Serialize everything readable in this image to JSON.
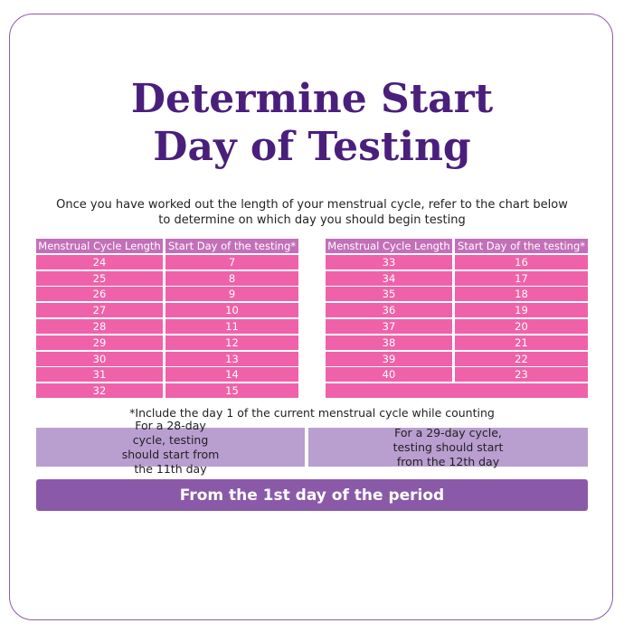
{
  "header": {
    "title_lines": [
      "Determine Start",
      "Day of Testing"
    ],
    "intro": "Once you have worked out the length of your menstrual cycle, refer to the chart below to determine on which day you should begin testing"
  },
  "tables": [
    {
      "headers": [
        "Menstrual Cycle Length",
        "Start Day of the testing*"
      ],
      "rows": [
        [
          24,
          7
        ],
        [
          25,
          8
        ],
        [
          26,
          9
        ],
        [
          27,
          10
        ],
        [
          28,
          11
        ],
        [
          29,
          12
        ],
        [
          30,
          13
        ],
        [
          31,
          14
        ],
        [
          32,
          15
        ]
      ]
    },
    {
      "headers": [
        "Menstrual Cycle Length",
        "Start Day of the testing*"
      ],
      "rows": [
        [
          33,
          16
        ],
        [
          34,
          17
        ],
        [
          35,
          18
        ],
        [
          36,
          19
        ],
        [
          37,
          20
        ],
        [
          38,
          21
        ],
        [
          39,
          22
        ],
        [
          40,
          23
        ]
      ]
    }
  ],
  "note": "*Include the day 1 of the current menstrual cycle while counting",
  "examples": [
    "For a 28-day cycle, testing should start from the 11th day",
    "For a 29-day cycle, testing should start from the 12th day"
  ],
  "footer": "From the 1st day of the period"
}
